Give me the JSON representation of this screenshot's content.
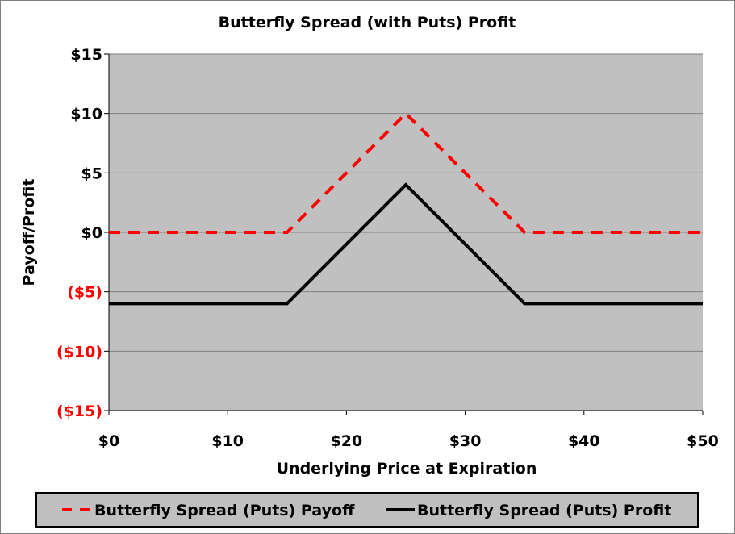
{
  "chart_data": {
    "type": "line",
    "title": "Butterfly Spread (with Puts) Profit",
    "xlabel": "Underlying Price at Expiration",
    "ylabel": "Payoff/Profit",
    "xlim": [
      0,
      50
    ],
    "ylim": [
      -15,
      15
    ],
    "xticks": [
      0,
      10,
      20,
      30,
      40,
      50
    ],
    "xtick_labels": [
      "$0",
      "$10",
      "$20",
      "$30",
      "$40",
      "$50"
    ],
    "yticks": [
      15,
      10,
      5,
      0,
      -5,
      -10,
      -15
    ],
    "ytick_labels": [
      "$15",
      "$10",
      "$5",
      "$0",
      "($5)",
      "($10)",
      "($15)"
    ],
    "negative_tick_color": "#ff0000",
    "grid": true,
    "plot_background": "#c0c0c0",
    "legend_position": "bottom",
    "series": [
      {
        "name": "Butterfly Spread (Puts) Payoff",
        "color": "#ff0000",
        "style": "dashed",
        "x": [
          0,
          15,
          25,
          35,
          50
        ],
        "y": [
          0,
          0,
          10,
          0,
          0
        ]
      },
      {
        "name": "Butterfly Spread (Puts) Profit",
        "color": "#000000",
        "style": "solid",
        "x": [
          0,
          15,
          25,
          35,
          50
        ],
        "y": [
          -6,
          -6,
          4,
          -6,
          -6
        ]
      }
    ]
  }
}
